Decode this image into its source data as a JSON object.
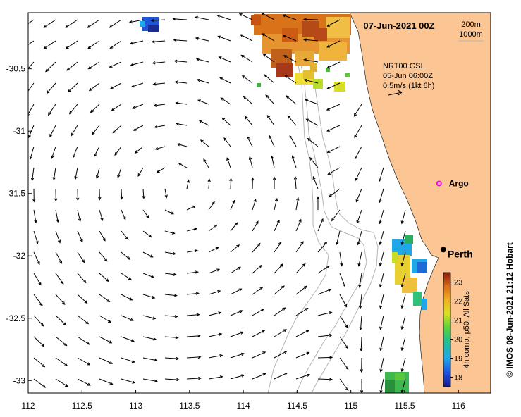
{
  "map": {
    "date_title": "07-Jun-2021 00Z",
    "isobath_legend": [
      "200m",
      "1000m"
    ],
    "current_source": {
      "line1": "NRT00 GSL",
      "line2": "05-Jun 06:00Z",
      "scale_label": "0.5m/s (1kt 6h)"
    },
    "places": [
      {
        "name": "Argo",
        "lon": 115.82,
        "lat": -31.42,
        "marker": "magenta-ring"
      },
      {
        "name": "Perth",
        "lon": 115.86,
        "lat": -31.95,
        "marker": "black-dot"
      }
    ],
    "lon_ticks": [
      "112",
      "112.5",
      "113",
      "113.5",
      "114",
      "114.5",
      "115",
      "115.5",
      "116"
    ],
    "lat_ticks": [
      "-30.5",
      "-31",
      "-31.5",
      "-32",
      "-32.5",
      "-33"
    ],
    "lon_range": [
      112,
      116.3
    ],
    "lat_range": [
      -33.1,
      -30.05
    ],
    "colorbar": {
      "title": "4h comp, p50, All Sats",
      "min": 17.5,
      "max": 23.5,
      "ticks": [
        "18",
        "19",
        "20",
        "21",
        "22",
        "23"
      ]
    },
    "credit": "© IMOS 08-Jun-2021 21:12 Hobart",
    "colors": {
      "land": "#fbc594",
      "sea": "#ffffff",
      "isobath": "#b4b4b4",
      "argo": "#ff00ff"
    }
  }
}
